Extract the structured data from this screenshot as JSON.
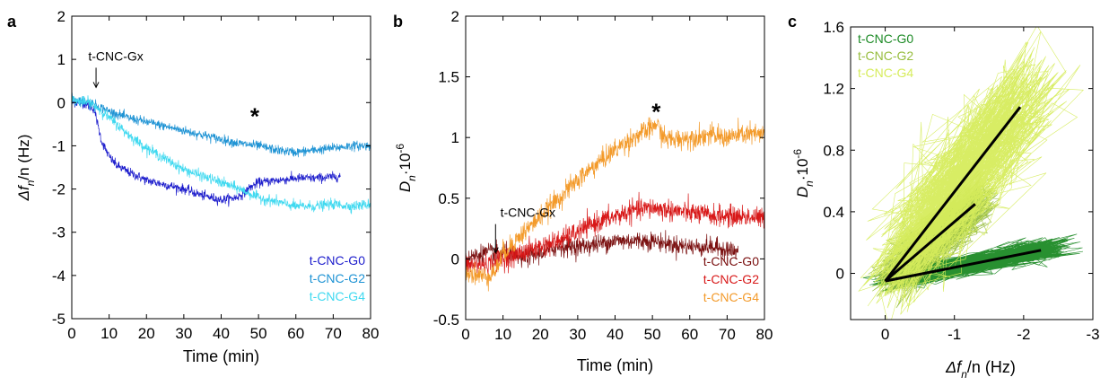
{
  "chart_data": [
    {
      "panel": "a",
      "type": "line",
      "ylabel_main": "Δf",
      "ylabel_sub": "n",
      "ylabel_rest": "/n (Hz)",
      "xlabel": "Time (min)",
      "xlim": [
        0,
        80
      ],
      "ylim": [
        -5,
        2
      ],
      "xticks": [
        0,
        10,
        20,
        30,
        40,
        50,
        60,
        70,
        80
      ],
      "yticks": [
        -5,
        -4,
        -3,
        -2,
        -1,
        0,
        1,
        2
      ],
      "grid": false,
      "legend": "bottom-right",
      "annotation": {
        "text": "t-CNC-Gx",
        "x": 6.5,
        "y": 0.35
      },
      "star": {
        "text": "*",
        "x": 49,
        "y": -0.3
      },
      "series": [
        {
          "name": "t-CNC-G0",
          "color": "#1c1ccc",
          "noise": 0.1,
          "x": [
            0,
            3,
            6,
            8,
            10,
            12,
            15,
            20,
            25,
            30,
            35,
            40,
            44,
            46,
            48,
            50,
            55,
            60,
            65,
            70,
            72
          ],
          "y": [
            0.0,
            0.0,
            -0.15,
            -0.9,
            -1.25,
            -1.45,
            -1.6,
            -1.8,
            -1.9,
            -2.0,
            -2.15,
            -2.25,
            -2.2,
            -2.1,
            -1.95,
            -1.85,
            -1.8,
            -1.75,
            -1.75,
            -1.72,
            -1.7
          ]
        },
        {
          "name": "t-CNC-G2",
          "color": "#1e93d4",
          "noise": 0.1,
          "x": [
            0,
            5,
            10,
            15,
            20,
            25,
            30,
            35,
            40,
            45,
            50,
            55,
            60,
            65,
            70,
            75,
            80
          ],
          "y": [
            0.1,
            0.0,
            -0.2,
            -0.35,
            -0.45,
            -0.55,
            -0.65,
            -0.75,
            -0.85,
            -0.95,
            -1.0,
            -1.1,
            -1.15,
            -1.1,
            -1.05,
            -1.0,
            -1.0
          ]
        },
        {
          "name": "t-CNC-G4",
          "color": "#3fd9f0",
          "noise": 0.11,
          "x": [
            0,
            5,
            8,
            12,
            16,
            20,
            25,
            30,
            35,
            40,
            45,
            50,
            55,
            60,
            65,
            70,
            75,
            80
          ],
          "y": [
            0.05,
            0.0,
            -0.2,
            -0.5,
            -0.8,
            -1.05,
            -1.3,
            -1.55,
            -1.7,
            -1.85,
            -2.0,
            -2.2,
            -2.3,
            -2.4,
            -2.4,
            -2.35,
            -2.4,
            -2.35
          ]
        }
      ]
    },
    {
      "panel": "b",
      "type": "line",
      "ylabel_main": "D",
      "ylabel_sub": "n",
      "ylabel_rest": "·10",
      "ylabel_sup": "-6",
      "xlabel": "Time (min)",
      "xlim": [
        0,
        80
      ],
      "ylim": [
        -0.5,
        2
      ],
      "xticks": [
        0,
        10,
        20,
        30,
        40,
        50,
        60,
        70,
        80
      ],
      "yticks": [
        -0.5,
        0,
        0.5,
        1,
        1.5,
        2
      ],
      "grid": false,
      "legend": "bottom-right",
      "annotation": {
        "text": "t-CNC-Gx",
        "x": 8,
        "y": 0.05
      },
      "star": {
        "text": "*",
        "x": 51,
        "y": 1.22
      },
      "series": [
        {
          "name": "t-CNC-G0",
          "color": "#7a0f0f",
          "noise": 0.07,
          "x": [
            0,
            5,
            10,
            15,
            20,
            25,
            30,
            35,
            40,
            45,
            50,
            55,
            60,
            65,
            70,
            73
          ],
          "y": [
            0.0,
            0.05,
            0.05,
            0.0,
            0.05,
            0.1,
            0.1,
            0.12,
            0.15,
            0.15,
            0.15,
            0.12,
            0.1,
            0.1,
            0.08,
            0.05
          ]
        },
        {
          "name": "t-CNC-G2",
          "color": "#d81818",
          "noise": 0.08,
          "x": [
            0,
            5,
            10,
            15,
            20,
            25,
            30,
            35,
            40,
            45,
            50,
            55,
            60,
            65,
            70,
            75,
            80
          ],
          "y": [
            -0.05,
            -0.05,
            0.0,
            0.05,
            0.1,
            0.15,
            0.22,
            0.3,
            0.35,
            0.4,
            0.42,
            0.4,
            0.38,
            0.36,
            0.35,
            0.35,
            0.33
          ]
        },
        {
          "name": "t-CNC-G4",
          "color": "#f39a2a",
          "noise": 0.08,
          "x": [
            0,
            5,
            8,
            10,
            15,
            20,
            25,
            30,
            35,
            40,
            45,
            50,
            51,
            53,
            55,
            60,
            65,
            70,
            75,
            80
          ],
          "y": [
            -0.1,
            -0.15,
            -0.1,
            0.05,
            0.2,
            0.35,
            0.5,
            0.65,
            0.78,
            0.9,
            1.0,
            1.08,
            1.12,
            1.0,
            0.98,
            1.0,
            1.02,
            1.0,
            1.03,
            1.02
          ]
        }
      ]
    },
    {
      "panel": "c",
      "type": "scatter",
      "ylabel_main": "D",
      "ylabel_sub": "n",
      "ylabel_rest": "·10",
      "ylabel_sup": "-6",
      "xlabel_main": "Δf",
      "xlabel_sub": "n",
      "xlabel_rest": "/n (Hz)",
      "xlim": [
        0.5,
        -3
      ],
      "ylim": [
        -0.3,
        1.6
      ],
      "xticks": [
        0,
        -1,
        -2,
        -3
      ],
      "yticks": [
        0,
        0.4,
        0.8,
        1.2,
        1.6
      ],
      "grid": false,
      "legend": "top-left",
      "series": [
        {
          "name": "t-CNC-G0",
          "color": "#1c8a25",
          "center": [
            -1.75,
            0.08
          ],
          "spread": [
            0.75,
            0.07
          ],
          "fit": [
            [
              0.0,
              -0.05
            ],
            [
              -2.25,
              0.15
            ]
          ]
        },
        {
          "name": "t-CNC-G2",
          "color": "#97bd3e",
          "center": [
            -0.8,
            0.2
          ],
          "spread": [
            0.55,
            0.18
          ],
          "fit": [
            [
              0.0,
              -0.05
            ],
            [
              -1.3,
              0.45
            ]
          ]
        },
        {
          "name": "t-CNC-G4",
          "color": "#d6ec5c",
          "center": [
            -1.2,
            0.55
          ],
          "spread": [
            1.1,
            0.35
          ],
          "fit": [
            [
              0.0,
              -0.05
            ],
            [
              -1.95,
              1.08
            ]
          ]
        }
      ]
    }
  ],
  "panel_labels": [
    "a",
    "b",
    "c"
  ]
}
